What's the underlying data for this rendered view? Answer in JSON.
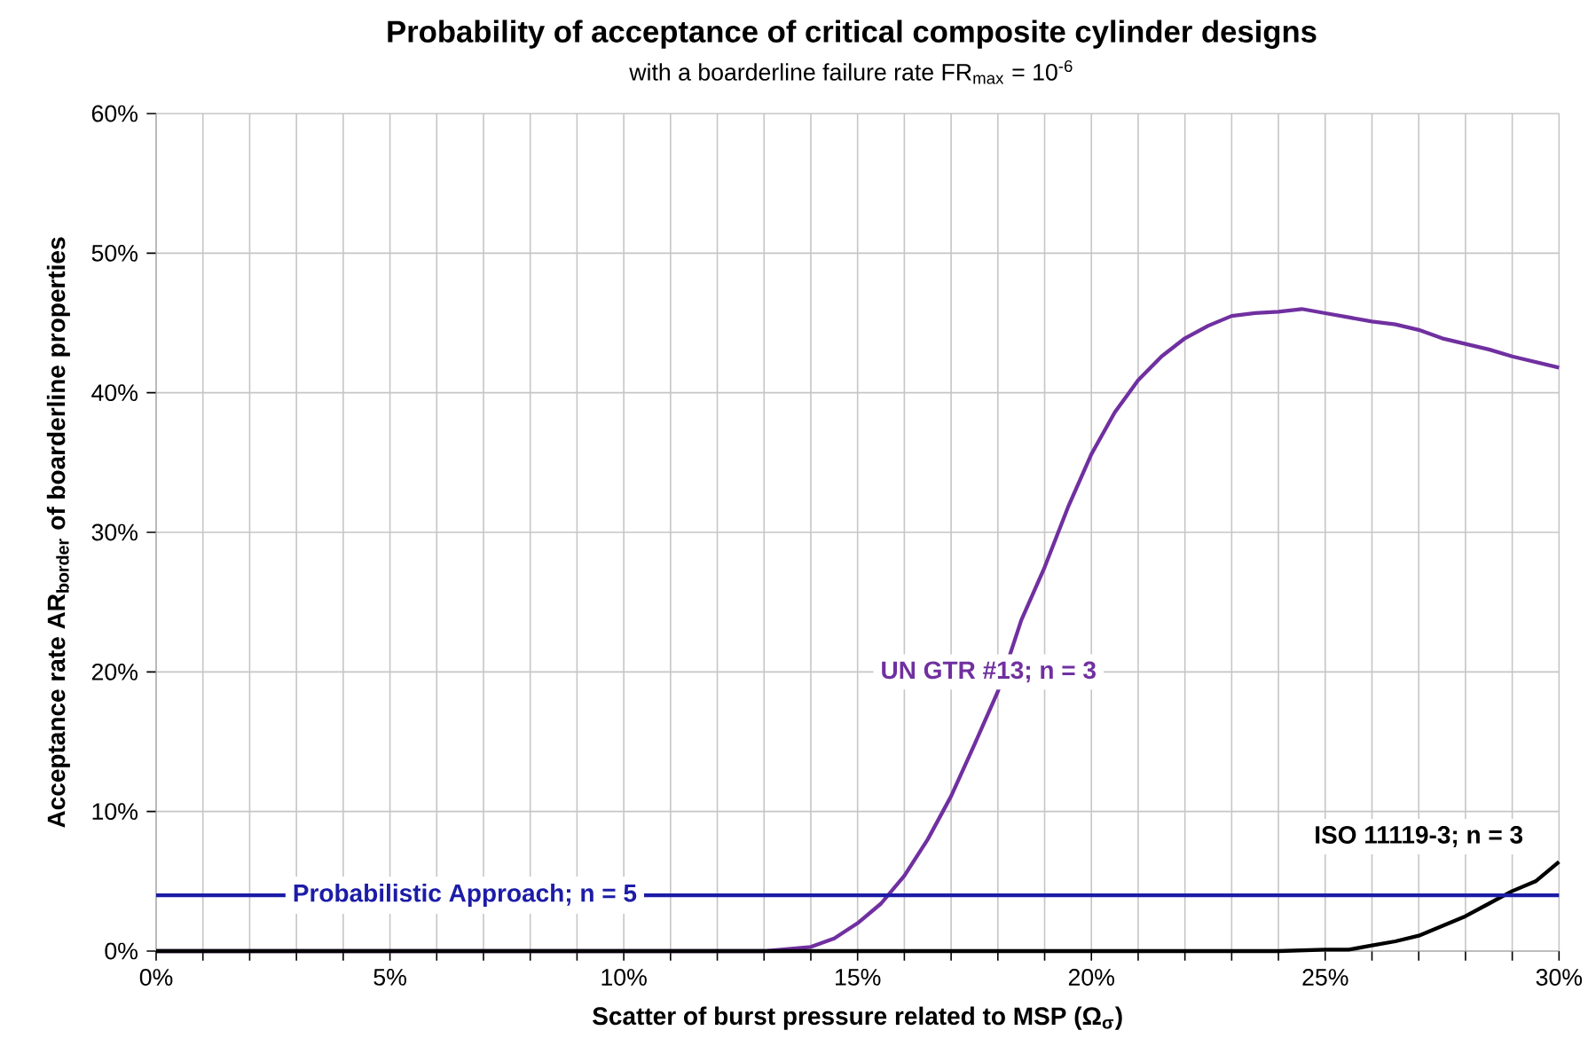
{
  "chart_data": {
    "type": "line",
    "title": "Probability of acceptance of critical composite cylinder designs",
    "subtitle": "with a boarderline failure rate FR$_{max}$ = 10$^{-6}$",
    "xlabel": "Scatter of burst pressure related to MSP (Ω$_{σ}$)",
    "ylabel": "Acceptance rate AR$_{border}$ of boarderline properties",
    "xlim": [
      0,
      30
    ],
    "ylim": [
      0,
      60
    ],
    "xticks": [
      {
        "value": 0,
        "label": "0%"
      },
      {
        "value": 1,
        "label": null
      },
      {
        "value": 2,
        "label": null
      },
      {
        "value": 3,
        "label": null
      },
      {
        "value": 4,
        "label": null
      },
      {
        "value": 5,
        "label": "5%"
      },
      {
        "value": 6,
        "label": null
      },
      {
        "value": 7,
        "label": null
      },
      {
        "value": 8,
        "label": null
      },
      {
        "value": 9,
        "label": null
      },
      {
        "value": 10,
        "label": "10%"
      },
      {
        "value": 11,
        "label": null
      },
      {
        "value": 12,
        "label": null
      },
      {
        "value": 13,
        "label": null
      },
      {
        "value": 14,
        "label": null
      },
      {
        "value": 15,
        "label": "15%"
      },
      {
        "value": 16,
        "label": null
      },
      {
        "value": 17,
        "label": null
      },
      {
        "value": 18,
        "label": null
      },
      {
        "value": 19,
        "label": null
      },
      {
        "value": 20,
        "label": "20%"
      },
      {
        "value": 21,
        "label": null
      },
      {
        "value": 22,
        "label": null
      },
      {
        "value": 23,
        "label": null
      },
      {
        "value": 24,
        "label": null
      },
      {
        "value": 25,
        "label": "25%"
      },
      {
        "value": 26,
        "label": null
      },
      {
        "value": 27,
        "label": null
      },
      {
        "value": 28,
        "label": null
      },
      {
        "value": 29,
        "label": null
      },
      {
        "value": 30,
        "label": "30%"
      }
    ],
    "yticks": [
      {
        "value": 0,
        "label": "0%"
      },
      {
        "value": 10,
        "label": "10%"
      },
      {
        "value": 20,
        "label": "20%"
      },
      {
        "value": 30,
        "label": "30%"
      },
      {
        "value": 40,
        "label": "40%"
      },
      {
        "value": 50,
        "label": "50%"
      },
      {
        "value": 60,
        "label": "60%"
      }
    ],
    "grid": true,
    "legend": false,
    "marker": "none",
    "line_style": "solid",
    "series": [
      {
        "name": "UN GTR #13; n = 3",
        "color": "#7030a0",
        "x": [
          0,
          13,
          14,
          14.5,
          15,
          15.5,
          16,
          16.5,
          17,
          17.5,
          18,
          18.5,
          19,
          19.5,
          20,
          20.5,
          21,
          21.5,
          22,
          22.5,
          23,
          23.5,
          24,
          24.5,
          25,
          25.5,
          26,
          26.5,
          27,
          27.5,
          28,
          28.5,
          29,
          29.5,
          30
        ],
        "values": [
          0,
          0,
          0.3,
          0.9,
          2.0,
          3.4,
          5.4,
          8.0,
          11.1,
          14.8,
          18.6,
          23.7,
          27.5,
          31.8,
          35.6,
          38.6,
          40.9,
          42.6,
          43.9,
          44.8,
          45.5,
          45.7,
          45.8,
          46.0,
          45.7,
          45.4,
          45.1,
          44.9,
          44.5,
          43.9,
          43.5,
          43.1,
          42.6,
          42.2,
          41.8
        ]
      },
      {
        "name": "ISO 11119-3; n = 3",
        "color": "#000000",
        "x": [
          0,
          24,
          25,
          25.5,
          26,
          26.5,
          27,
          27.5,
          28,
          28.5,
          29,
          29.5,
          30
        ],
        "values": [
          0,
          0,
          0.1,
          0.1,
          0.4,
          0.7,
          1.1,
          1.8,
          2.5,
          3.4,
          4.3,
          5.0,
          6.4
        ]
      },
      {
        "name": "Probabilistic Approach; n = 5",
        "color": "#1c1ca8",
        "x": [
          0,
          30
        ],
        "values": [
          4,
          4
        ]
      }
    ]
  }
}
